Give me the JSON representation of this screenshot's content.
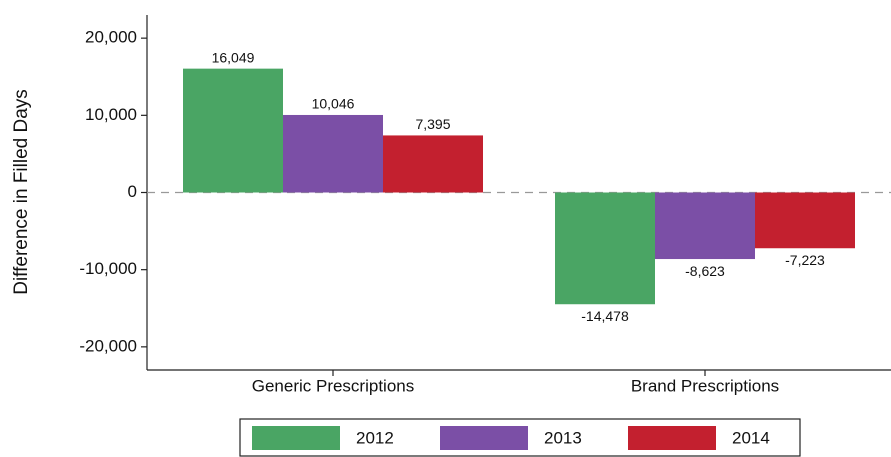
{
  "chart_data": {
    "type": "bar",
    "ylabel": "Difference in Filled Days",
    "categories": [
      "Generic Prescriptions",
      "Brand Prescriptions"
    ],
    "series": [
      {
        "name": "2012",
        "color": "#4aa564",
        "values": [
          16049,
          -14478
        ],
        "value_labels": [
          "16,049",
          "-14,478"
        ]
      },
      {
        "name": "2013",
        "color": "#7b4fa6",
        "values": [
          10046,
          -8623
        ],
        "value_labels": [
          "10,046",
          "-8,623"
        ]
      },
      {
        "name": "2014",
        "color": "#c3202f",
        "values": [
          7395,
          -7223
        ],
        "value_labels": [
          "7,395",
          "-7,223"
        ]
      }
    ],
    "ylim": [
      -23000,
      23000
    ],
    "yticks": [
      {
        "value": -20000,
        "label": "-20,000"
      },
      {
        "value": -10000,
        "label": "-10,000"
      },
      0,
      {
        "value": 10000,
        "label": "10,000"
      },
      {
        "value": 20000,
        "label": "20,000"
      }
    ],
    "legend": "bottom"
  }
}
